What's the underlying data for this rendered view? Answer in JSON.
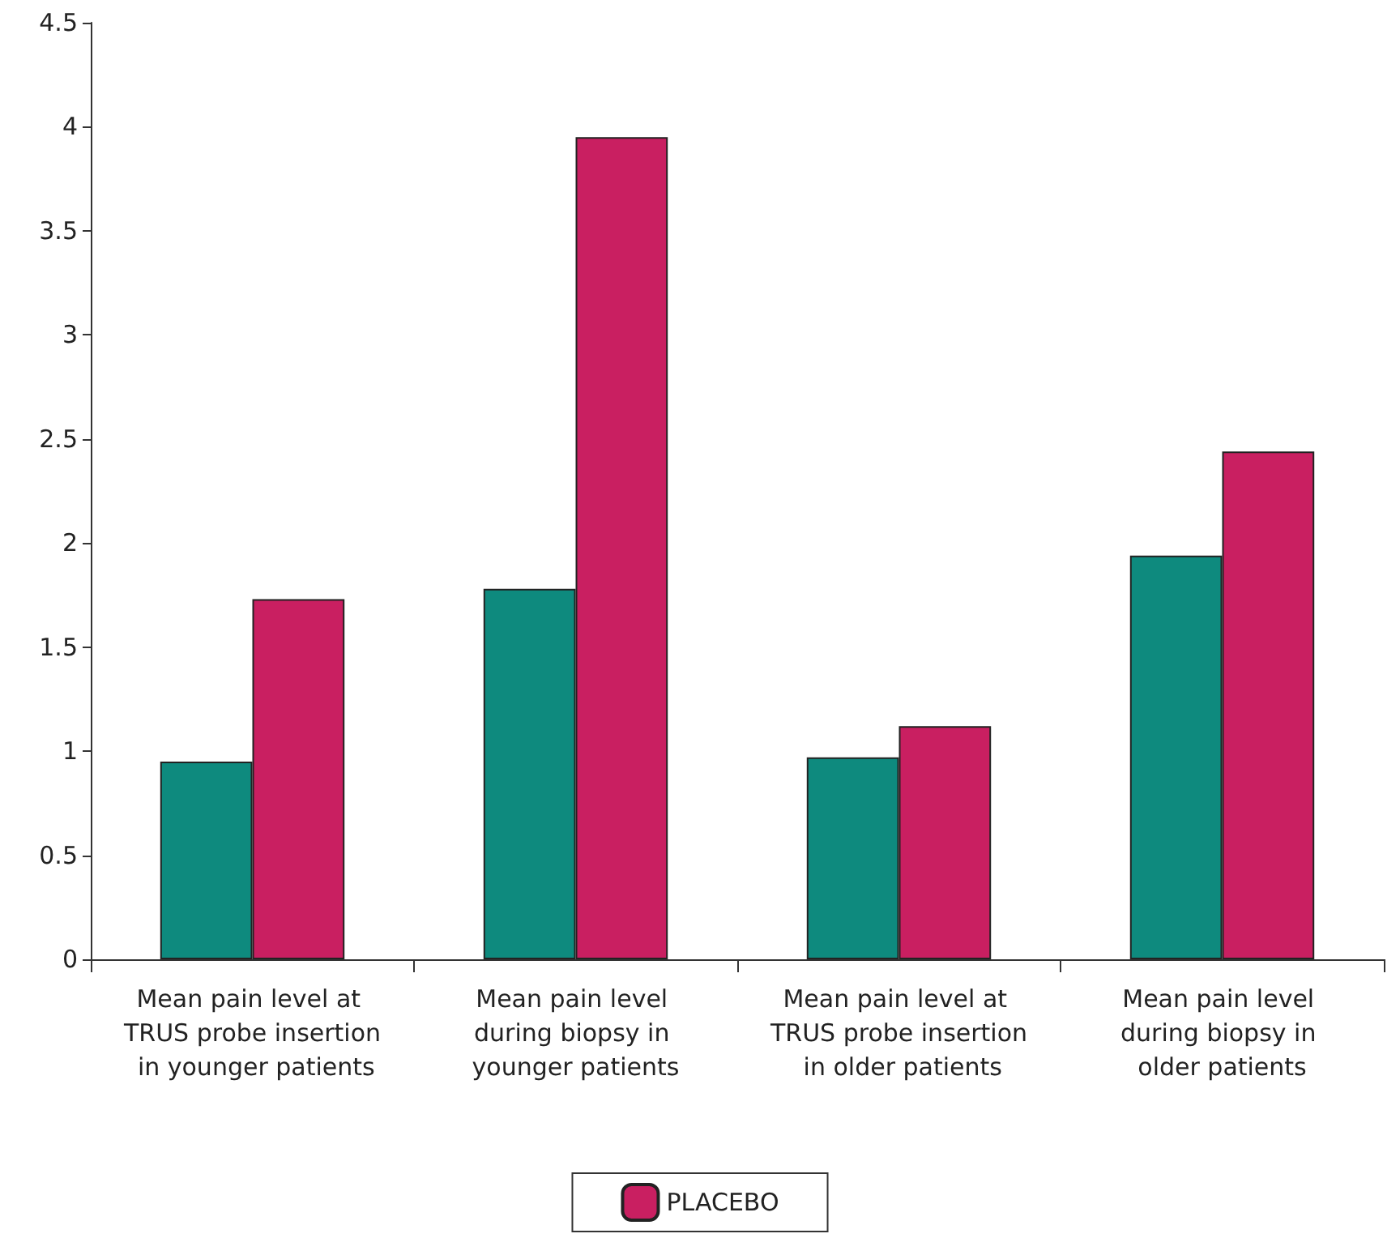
{
  "chart_data": {
    "type": "bar",
    "categories": [
      "Mean pain level at TRUS probe insertion in younger patients",
      "Mean pain level during biopsy in younger patients",
      "Mean pain level at TRUS probe insertion in older patients",
      "Mean pain level during biopsy in older patients"
    ],
    "series": [
      {
        "color": "#0e8a7e",
        "values": [
          0.95,
          1.78,
          0.97,
          1.94
        ]
      },
      {
        "name": "PLACEBO",
        "color": "#c91f61",
        "values": [
          1.73,
          3.95,
          1.12,
          2.44
        ]
      }
    ],
    "ylim": [
      0,
      4.5
    ],
    "yticks": [
      0,
      0.5,
      1,
      1.5,
      2,
      2.5,
      3,
      3.5,
      4,
      4.5
    ],
    "grid": false,
    "legend": "bottom"
  }
}
